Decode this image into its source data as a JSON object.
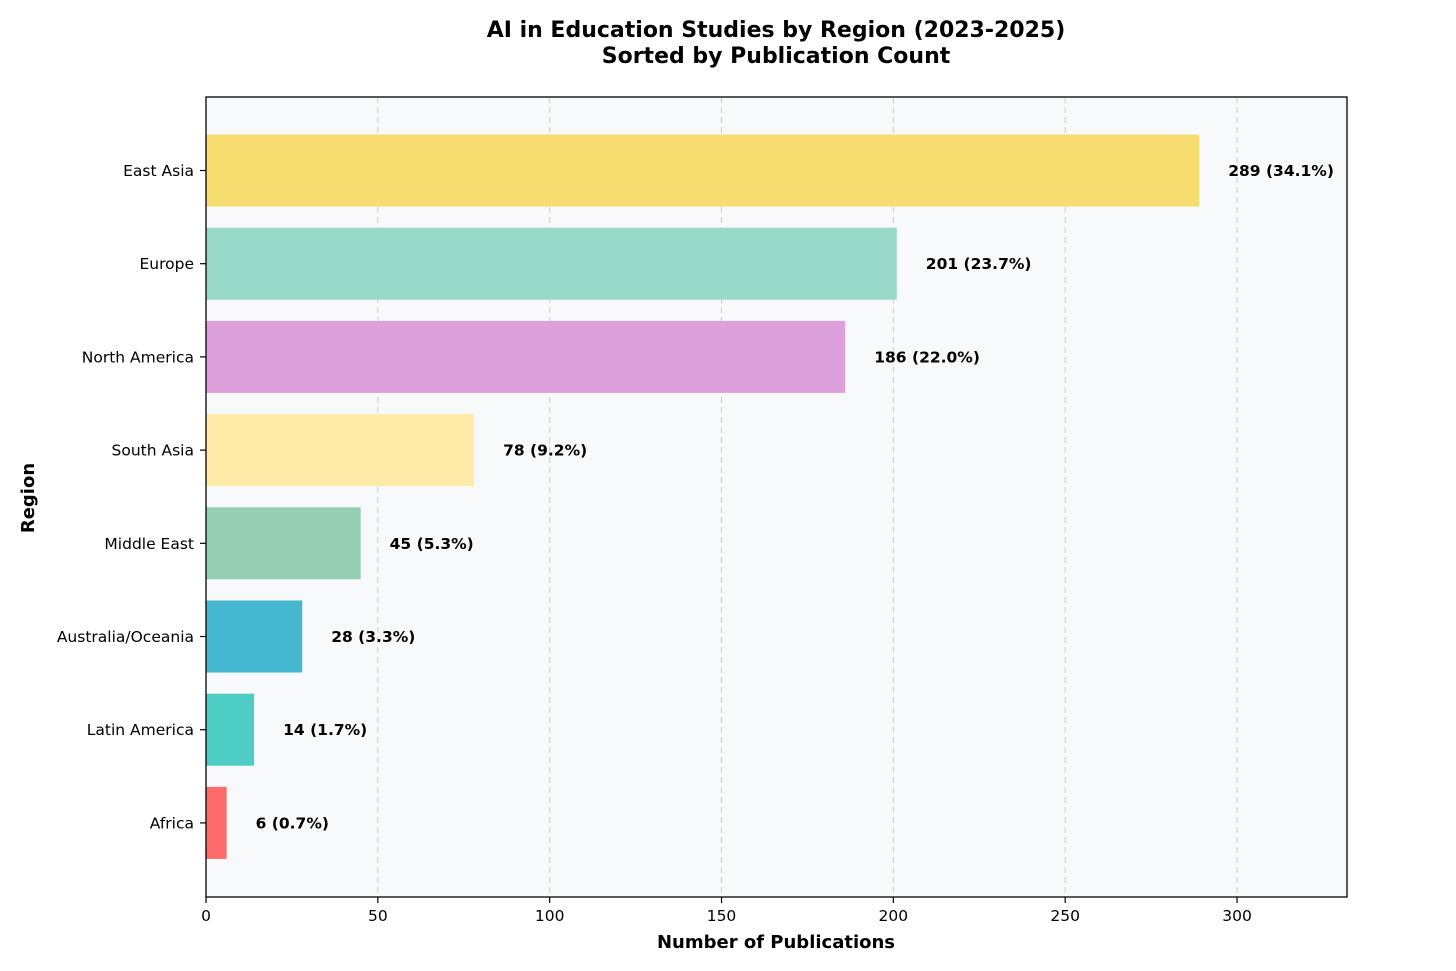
{
  "chart_data": {
    "type": "bar",
    "orientation": "horizontal",
    "title": [
      "AI in Education Studies by Region (2023-2025)",
      "Sorted by Publication Count"
    ],
    "xlabel": "Number of Publications",
    "ylabel": "Region",
    "xlim": [
      0,
      332
    ],
    "xticks": [
      0,
      50,
      100,
      150,
      200,
      250,
      300
    ],
    "grid": "x-dashed",
    "categories": [
      "East Asia",
      "Europe",
      "North America",
      "South Asia",
      "Middle East",
      "Australia/Oceania",
      "Latin America",
      "Africa"
    ],
    "values": [
      289,
      201,
      186,
      78,
      45,
      28,
      14,
      6
    ],
    "data_labels": [
      "289 (34.1%)",
      "201 (23.7%)",
      "186 (22.0%)",
      "78 (9.2%)",
      "45 (5.3%)",
      "28 (3.3%)",
      "14 (1.7%)",
      "6 (0.7%)"
    ],
    "colors": [
      "#F7DC6F",
      "#98D8C8",
      "#DDA0DD",
      "#FFEAA7",
      "#96CEB4",
      "#45B7D1",
      "#4ECDC4",
      "#FF6B6B"
    ],
    "plot_background": "#F8F9FA"
  }
}
